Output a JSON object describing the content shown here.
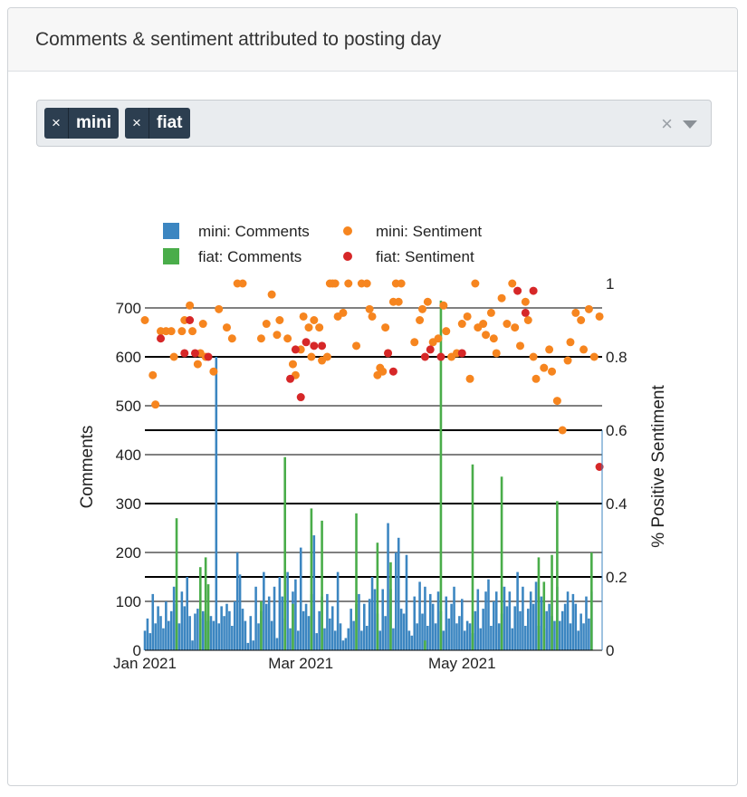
{
  "card": {
    "title": "Comments & sentiment attributed to posting day"
  },
  "filter": {
    "tags": [
      {
        "label": "mini"
      },
      {
        "label": "fiat"
      }
    ],
    "clear_glyph": "×",
    "remove_glyph": "×"
  },
  "chart_data": {
    "type": "bar",
    "x_range": [
      "2021-01-01",
      "2021-06-23"
    ],
    "x_ticks": [
      {
        "date": "2021-01-01",
        "label": "Jan 2021"
      },
      {
        "date": "2021-03-01",
        "label": "Mar 2021"
      },
      {
        "date": "2021-05-01",
        "label": "May 2021"
      }
    ],
    "ylabel": "Comments",
    "ylim": [
      0,
      750
    ],
    "y_ticks": [
      0,
      100,
      200,
      300,
      400,
      500,
      600,
      700
    ],
    "y2label": "% Positive Sentiment",
    "y2lim": [
      0,
      1
    ],
    "y2_ticks": [
      {
        "value": 0,
        "label": "0"
      },
      {
        "value": 0.2,
        "label": "0.2"
      },
      {
        "value": 0.4,
        "label": "0.4"
      },
      {
        "value": 0.6,
        "label": "0.6"
      },
      {
        "value": 0.8,
        "label": "0.8"
      },
      {
        "value": 1,
        "label": "1"
      }
    ],
    "legend_position": "top",
    "grid": true,
    "series": [
      {
        "name": "mini: Comments",
        "kind": "bar",
        "axis": "y",
        "color": "#3c86c1",
        "start": "2021-01-01",
        "values": [
          40,
          65,
          35,
          115,
          55,
          90,
          70,
          45,
          100,
          60,
          80,
          130,
          95,
          55,
          120,
          90,
          150,
          70,
          20,
          75,
          85,
          65,
          80,
          75,
          60,
          70,
          60,
          600,
          55,
          90,
          70,
          95,
          80,
          50,
          100,
          200,
          155,
          85,
          60,
          15,
          70,
          20,
          130,
          55,
          80,
          160,
          95,
          110,
          60,
          130,
          25,
          150,
          110,
          65,
          160,
          45,
          120,
          145,
          40,
          210,
          80,
          95,
          70,
          115,
          235,
          35,
          80,
          110,
          45,
          115,
          65,
          90,
          40,
          160,
          55,
          20,
          25,
          45,
          85,
          60,
          95,
          115,
          40,
          95,
          50,
          105,
          150,
          125,
          75,
          40,
          125,
          70,
          260,
          125,
          45,
          200,
          230,
          85,
          75,
          195,
          40,
          30,
          110,
          55,
          140,
          75,
          130,
          50,
          115,
          95,
          55,
          120,
          80,
          40,
          110,
          65,
          95,
          130,
          55,
          70,
          105,
          40,
          60,
          55,
          35,
          80,
          125,
          45,
          85,
          120,
          145,
          50,
          100,
          120,
          55,
          75,
          130,
          90,
          120,
          45,
          90,
          160,
          80,
          130,
          50,
          85,
          120,
          95,
          140,
          50,
          110,
          45,
          80,
          95,
          70,
          60,
          130,
          60,
          80,
          95,
          120,
          55,
          115,
          95,
          40,
          75,
          55,
          110,
          65,
          120
        ]
      },
      {
        "name": "fiat: Comments",
        "kind": "bar",
        "axis": "y",
        "color": "#4aad4a",
        "points": [
          [
            "2021-01-13",
            270
          ],
          [
            "2021-01-22",
            170
          ],
          [
            "2021-01-24",
            190
          ],
          [
            "2021-01-25",
            135
          ],
          [
            "2021-02-14",
            100
          ],
          [
            "2021-02-23",
            395
          ],
          [
            "2021-02-26",
            95
          ],
          [
            "2021-03-05",
            290
          ],
          [
            "2021-03-09",
            265
          ],
          [
            "2021-03-22",
            280
          ],
          [
            "2021-03-30",
            220
          ],
          [
            "2021-04-04",
            180
          ],
          [
            "2021-04-17",
            20
          ],
          [
            "2021-04-23",
            715
          ],
          [
            "2021-05-05",
            380
          ],
          [
            "2021-05-16",
            355
          ],
          [
            "2021-05-30",
            190
          ],
          [
            "2021-06-01",
            140
          ],
          [
            "2021-06-04",
            195
          ],
          [
            "2021-06-06",
            305
          ],
          [
            "2021-06-19",
            200
          ]
        ]
      },
      {
        "name": "mini: Sentiment",
        "kind": "scatter",
        "axis": "y2",
        "color": "#f6851f",
        "points": [
          [
            "2021-01-01",
            0.9
          ],
          [
            "2021-01-04",
            0.75
          ],
          [
            "2021-01-05",
            0.67
          ],
          [
            "2021-01-07",
            0.87
          ],
          [
            "2021-01-09",
            0.87
          ],
          [
            "2021-01-11",
            0.87
          ],
          [
            "2021-01-12",
            0.8
          ],
          [
            "2021-01-15",
            0.87
          ],
          [
            "2021-01-16",
            0.9
          ],
          [
            "2021-01-18",
            0.94
          ],
          [
            "2021-01-19",
            0.87
          ],
          [
            "2021-01-21",
            0.78
          ],
          [
            "2021-01-22",
            0.81
          ],
          [
            "2021-01-23",
            0.89
          ],
          [
            "2021-01-24",
            0.8
          ],
          [
            "2021-01-27",
            0.76
          ],
          [
            "2021-01-29",
            0.93
          ],
          [
            "2021-02-01",
            0.88
          ],
          [
            "2021-02-03",
            0.85
          ],
          [
            "2021-02-05",
            1.0
          ],
          [
            "2021-02-07",
            1.0
          ],
          [
            "2021-02-14",
            0.85
          ],
          [
            "2021-02-16",
            0.89
          ],
          [
            "2021-02-18",
            0.97
          ],
          [
            "2021-02-20",
            0.86
          ],
          [
            "2021-02-21",
            0.9
          ],
          [
            "2021-02-24",
            0.85
          ],
          [
            "2021-02-26",
            0.78
          ],
          [
            "2021-02-27",
            0.75
          ],
          [
            "2021-03-01",
            0.82
          ],
          [
            "2021-03-02",
            0.91
          ],
          [
            "2021-03-04",
            0.88
          ],
          [
            "2021-03-05",
            0.8
          ],
          [
            "2021-03-06",
            0.9
          ],
          [
            "2021-03-08",
            0.88
          ],
          [
            "2021-03-09",
            0.79
          ],
          [
            "2021-03-11",
            0.8
          ],
          [
            "2021-03-12",
            1.0
          ],
          [
            "2021-03-13",
            1.0
          ],
          [
            "2021-03-14",
            1.0
          ],
          [
            "2021-03-15",
            0.91
          ],
          [
            "2021-03-17",
            0.92
          ],
          [
            "2021-03-19",
            1.0
          ],
          [
            "2021-03-22",
            0.83
          ],
          [
            "2021-03-24",
            1.0
          ],
          [
            "2021-03-26",
            1.0
          ],
          [
            "2021-03-27",
            0.93
          ],
          [
            "2021-03-28",
            0.91
          ],
          [
            "2021-03-30",
            0.75
          ],
          [
            "2021-03-31",
            0.77
          ],
          [
            "2021-04-01",
            0.76
          ],
          [
            "2021-04-02",
            0.88
          ],
          [
            "2021-04-03",
            0.81
          ],
          [
            "2021-04-05",
            0.95
          ],
          [
            "2021-04-06",
            1.0
          ],
          [
            "2021-04-07",
            0.95
          ],
          [
            "2021-04-08",
            1.0
          ],
          [
            "2021-04-13",
            0.84
          ],
          [
            "2021-04-15",
            0.9
          ],
          [
            "2021-04-16",
            0.93
          ],
          [
            "2021-04-18",
            0.95
          ],
          [
            "2021-04-20",
            0.84
          ],
          [
            "2021-04-22",
            0.85
          ],
          [
            "2021-04-24",
            0.94
          ],
          [
            "2021-04-25",
            0.87
          ],
          [
            "2021-04-27",
            0.8
          ],
          [
            "2021-04-29",
            0.81
          ],
          [
            "2021-05-01",
            0.89
          ],
          [
            "2021-05-03",
            0.91
          ],
          [
            "2021-05-04",
            0.74
          ],
          [
            "2021-05-06",
            1.0
          ],
          [
            "2021-05-07",
            0.88
          ],
          [
            "2021-05-09",
            0.89
          ],
          [
            "2021-05-10",
            0.86
          ],
          [
            "2021-05-12",
            0.92
          ],
          [
            "2021-05-13",
            0.85
          ],
          [
            "2021-05-14",
            0.81
          ],
          [
            "2021-05-16",
            0.96
          ],
          [
            "2021-05-18",
            0.89
          ],
          [
            "2021-05-20",
            1.0
          ],
          [
            "2021-05-21",
            0.88
          ],
          [
            "2021-05-23",
            0.83
          ],
          [
            "2021-05-25",
            0.95
          ],
          [
            "2021-05-26",
            0.9
          ],
          [
            "2021-05-28",
            0.8
          ],
          [
            "2021-05-29",
            0.74
          ],
          [
            "2021-06-01",
            0.77
          ],
          [
            "2021-06-03",
            0.82
          ],
          [
            "2021-06-04",
            0.76
          ],
          [
            "2021-06-06",
            0.68
          ],
          [
            "2021-06-08",
            0.6
          ],
          [
            "2021-06-10",
            0.79
          ],
          [
            "2021-06-11",
            0.84
          ],
          [
            "2021-06-13",
            0.92
          ],
          [
            "2021-06-15",
            0.9
          ],
          [
            "2021-06-16",
            0.82
          ],
          [
            "2021-06-18",
            0.93
          ],
          [
            "2021-06-20",
            0.8
          ],
          [
            "2021-06-22",
            0.91
          ]
        ]
      },
      {
        "name": "fiat: Sentiment",
        "kind": "scatter",
        "axis": "y2",
        "color": "#d62728",
        "points": [
          [
            "2021-01-07",
            0.85
          ],
          [
            "2021-01-16",
            0.81
          ],
          [
            "2021-01-18",
            0.9
          ],
          [
            "2021-01-20",
            0.81
          ],
          [
            "2021-01-25",
            0.8
          ],
          [
            "2021-02-25",
            0.74
          ],
          [
            "2021-02-27",
            0.82
          ],
          [
            "2021-03-01",
            0.69
          ],
          [
            "2021-03-03",
            0.84
          ],
          [
            "2021-03-06",
            0.83
          ],
          [
            "2021-03-09",
            0.83
          ],
          [
            "2021-04-03",
            0.81
          ],
          [
            "2021-04-05",
            0.76
          ],
          [
            "2021-04-17",
            0.8
          ],
          [
            "2021-04-19",
            0.82
          ],
          [
            "2021-04-23",
            0.8
          ],
          [
            "2021-05-01",
            0.81
          ],
          [
            "2021-05-22",
            0.98
          ],
          [
            "2021-05-25",
            0.92
          ],
          [
            "2021-05-28",
            0.98
          ],
          [
            "2021-06-22",
            0.5
          ]
        ]
      }
    ]
  }
}
